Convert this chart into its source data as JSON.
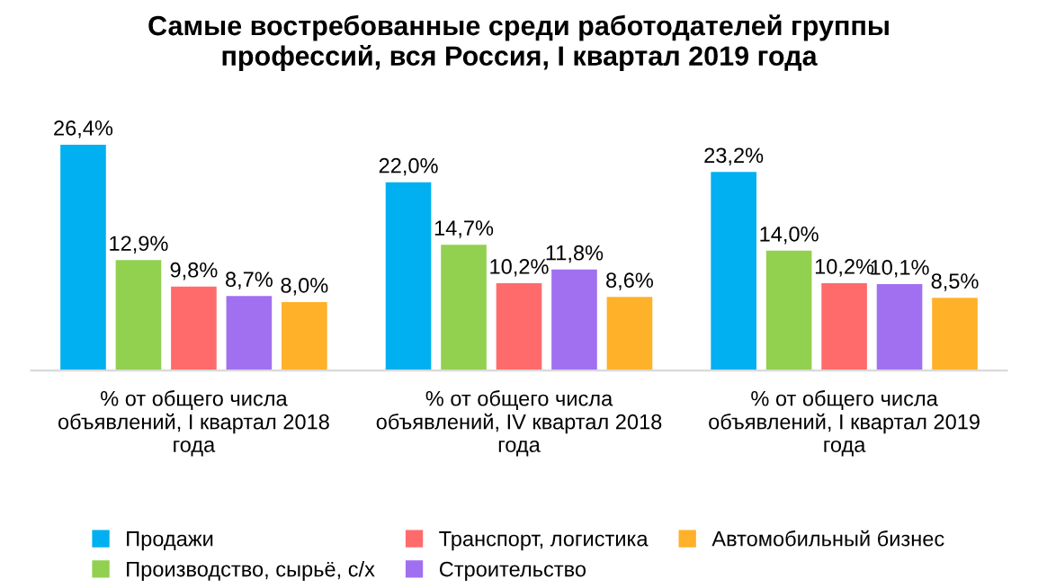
{
  "chart_data": {
    "type": "bar",
    "title": "Самые востребованные среди работодателей группы\nпрофессий, вся Россия, I квартал 2019 года",
    "categories": [
      "% от общего числа\nобъявлений, I квартал 2018\nгода",
      "% от общего числа\nобъявлений, IV квартал 2018\nгода",
      "% от общего числа\nобъявлений, I квартал 2019\nгода"
    ],
    "series": [
      {
        "name": "Продажи",
        "color": "#00b0f0",
        "values": [
          26.4,
          22.0,
          23.2
        ],
        "value_labels": [
          "26,4%",
          "22,0%",
          "23,2%"
        ]
      },
      {
        "name": "Производство, сырьё, с/х",
        "color": "#92d050",
        "values": [
          12.9,
          14.7,
          14.0
        ],
        "value_labels": [
          "12,9%",
          "14,7%",
          "14,0%"
        ]
      },
      {
        "name": "Транспорт, логистика",
        "color": "#ff6b6b",
        "values": [
          9.8,
          10.2,
          10.2
        ],
        "value_labels": [
          "9,8%",
          "10,2%",
          "10,2%"
        ]
      },
      {
        "name": "Строительство",
        "color": "#a070f0",
        "values": [
          8.7,
          11.8,
          10.1
        ],
        "value_labels": [
          "8,7%",
          "11,8%",
          "10,1%"
        ]
      },
      {
        "name": "Автомобильный бизнес",
        "color": "#ffb129",
        "values": [
          8.0,
          8.6,
          8.5
        ],
        "value_labels": [
          "8,0%",
          "8,6%",
          "8,5%"
        ]
      }
    ],
    "legend": "bottom",
    "grid": false
  }
}
